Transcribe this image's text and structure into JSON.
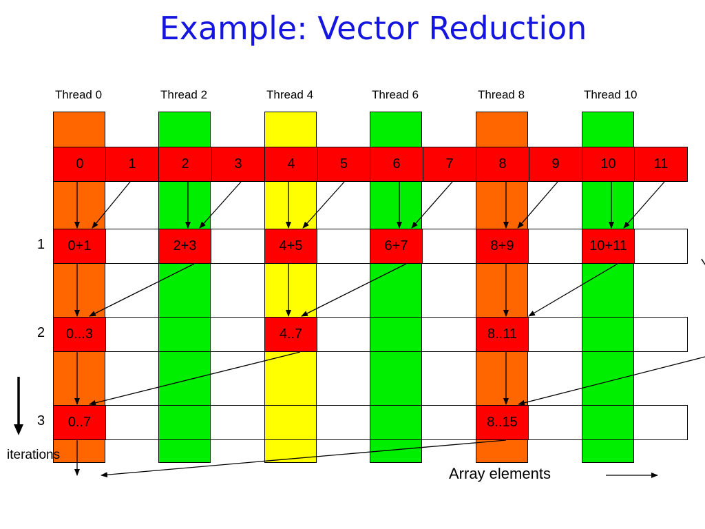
{
  "title": "Example:  Vector Reduction",
  "threads": [
    "Thread 0",
    "Thread 2",
    "Thread 4",
    "Thread 6",
    "Thread 8",
    "Thread 10"
  ],
  "thread_colors": [
    "#ff6600",
    "#00ee00",
    "#ffff00",
    "#00ee00",
    "#ff6600",
    "#00ee00"
  ],
  "elements": [
    "0",
    "1",
    "2",
    "3",
    "4",
    "5",
    "6",
    "7",
    "8",
    "9",
    "10",
    "11"
  ],
  "iterations": [
    {
      "label": "1",
      "cells": [
        "0+1",
        "2+3",
        "4+5",
        "6+7",
        "8+9",
        "10+11"
      ]
    },
    {
      "label": "2",
      "cells": [
        "0...3",
        "4..7",
        "8..11"
      ]
    },
    {
      "label": "3",
      "cells": [
        "0..7",
        "8..15"
      ]
    }
  ],
  "iterations_label": "iterations",
  "array_elements_label": "Array elements",
  "colors": {
    "title": "#1515e0",
    "cell": "#ff0000"
  }
}
